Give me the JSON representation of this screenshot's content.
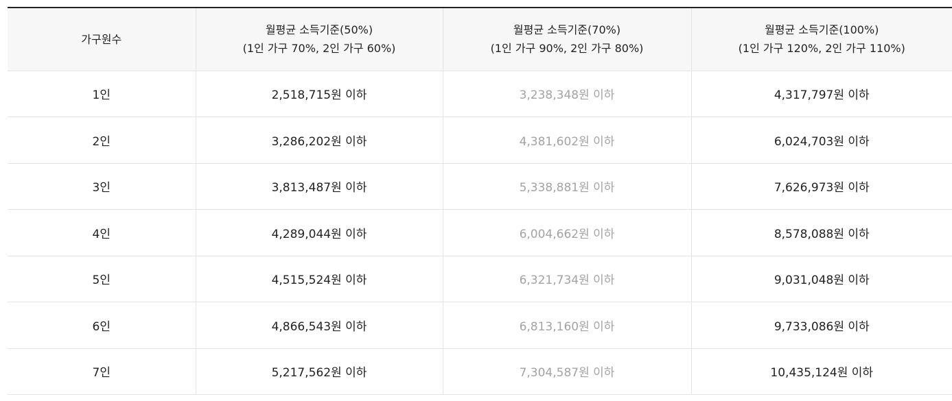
{
  "table": {
    "headers": [
      {
        "line1": "가구원수",
        "line2": ""
      },
      {
        "line1": "월평균 소득기준(50%)",
        "line2": "(1인 가구 70%, 2인 가구 60%)"
      },
      {
        "line1": "월평균 소득기준(70%)",
        "line2": "(1인 가구 90%, 2인 가구 80%)"
      },
      {
        "line1": "월평균 소득기준(100%)",
        "line2": "(1인 가구 120%, 2인 가구 110%)"
      }
    ],
    "rows": [
      [
        "1인",
        "2,518,715원 이하",
        "3,238,348원 이하",
        "4,317,797원 이하"
      ],
      [
        "2인",
        "3,286,202원 이하",
        "4,381,602원 이하",
        "6,024,703원 이하"
      ],
      [
        "3인",
        "3,813,487원 이하",
        "5,338,881원 이하",
        "7,626,973원 이하"
      ],
      [
        "4인",
        "4,289,044원 이하",
        "6,004,662원 이하",
        "8,578,088원 이하"
      ],
      [
        "5인",
        "4,515,524원 이하",
        "6,321,734원 이하",
        "9,031,048원 이하"
      ],
      [
        "6인",
        "4,866,543원 이하",
        "6,813,160원 이하",
        "9,733,086원 이하"
      ],
      [
        "7인",
        "5,217,562원 이하",
        "7,304,587원 이하",
        "10,435,124원 이하"
      ]
    ],
    "colors": {
      "text": "#222222",
      "muted_text": "#a3a3a3",
      "header_background": "#f7f7f7",
      "grid_line": "#e4e4e4",
      "top_rule": "#222222"
    }
  }
}
